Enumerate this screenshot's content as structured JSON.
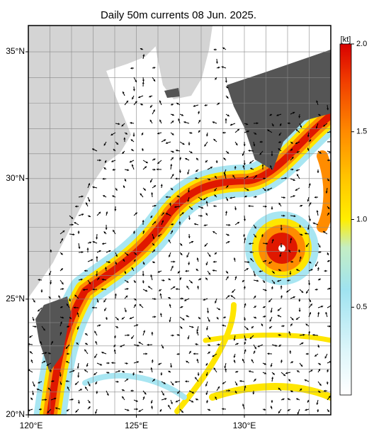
{
  "title": "Daily 50m currents 08 Jun. 2025.",
  "map": {
    "xlim": [
      120,
      134
    ],
    "ylim": [
      20,
      36
    ],
    "xticks": [
      {
        "value": 120,
        "label": "120°E"
      },
      {
        "value": 125,
        "label": "125°E"
      },
      {
        "value": 130,
        "label": "130°E"
      }
    ],
    "yticks": [
      {
        "value": 20,
        "label": "20°N"
      },
      {
        "value": 25,
        "label": "25°N"
      },
      {
        "value": 30,
        "label": "30°N"
      },
      {
        "value": 35,
        "label": "35°N"
      }
    ]
  },
  "colorbar": {
    "unit": "[kt]",
    "lim": [
      0,
      2
    ],
    "ticks": [
      0.5,
      {
        "value": 1,
        "label": "1.0"
      },
      1.5,
      {
        "value": 2,
        "label": "2.0"
      }
    ]
  }
}
